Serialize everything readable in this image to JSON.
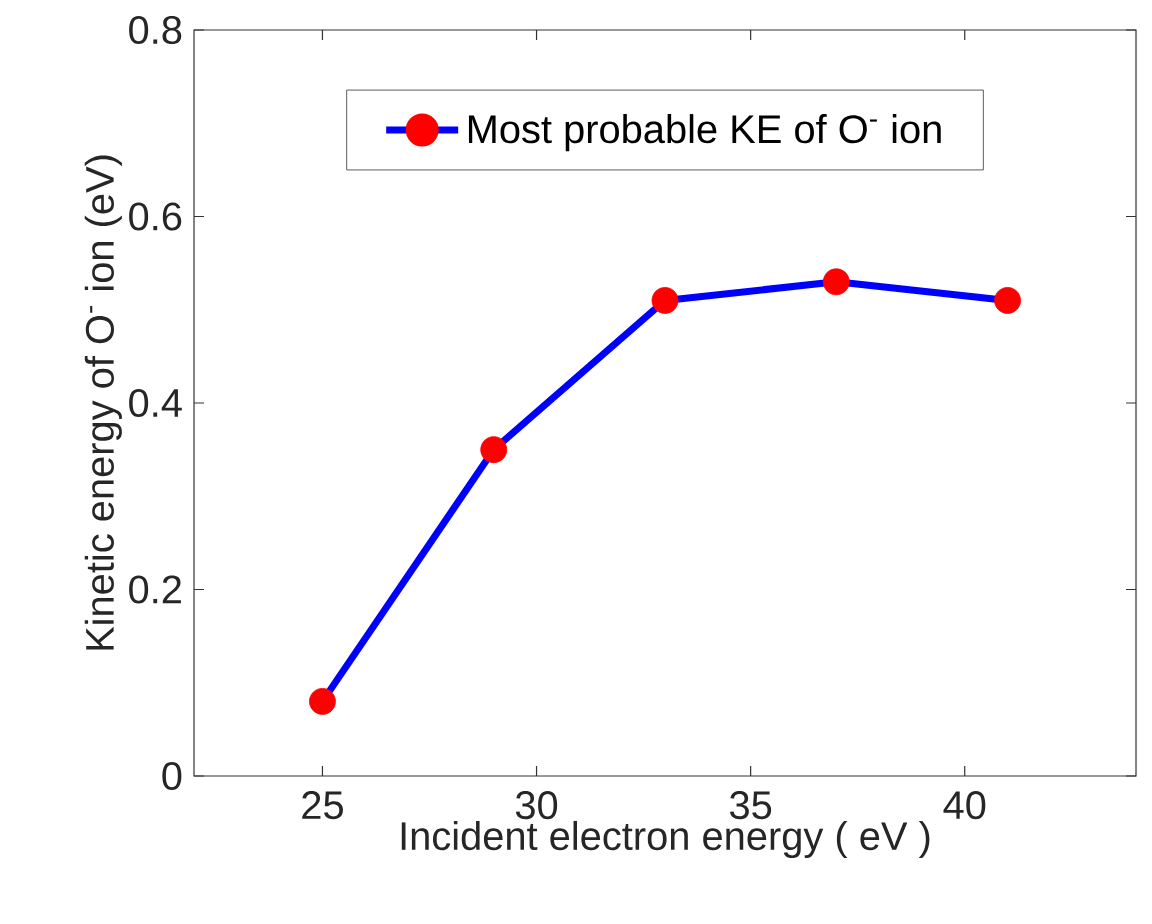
{
  "chart_data": {
    "type": "line",
    "xlabel": "Incident electron energy ( eV )",
    "ylabel": "Kinetic energy of O$^{-}$ ion (eV)",
    "x": [
      25,
      29,
      33,
      37,
      41
    ],
    "series": [
      {
        "name": "Most probable KE of O$^{-}$ ion",
        "color": "#0000ff",
        "colors": [
          "#ff0000",
          "#ff0000",
          "#ff0000",
          "#ff0000",
          "#ff0000"
        ],
        "values": [
          0.08,
          0.35,
          0.51,
          0.53,
          0.51
        ]
      }
    ],
    "xlim": [
      22,
      44
    ],
    "xticks": [
      25,
      30,
      35,
      40
    ],
    "ylim": [
      0,
      0.8
    ],
    "yticks": [
      0,
      0.2,
      0.4,
      0.6,
      0.8
    ],
    "grid": false,
    "legend": "top",
    "marker": "circle",
    "line_style": "solid"
  }
}
